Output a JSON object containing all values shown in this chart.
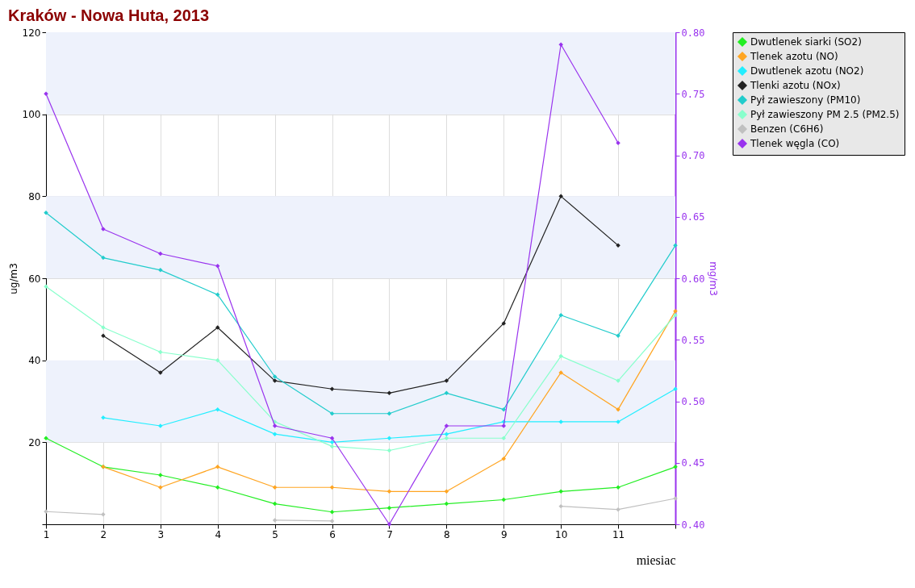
{
  "chart_data": {
    "type": "line",
    "title": "Kraków - Nowa Huta, 2013",
    "xlabel": "miesiac",
    "ylabel": "ug/m3",
    "y2label": "mg/m3",
    "x": [
      1,
      2,
      3,
      4,
      5,
      6,
      7,
      8,
      9,
      10,
      11,
      12
    ],
    "xlim": [
      1,
      12
    ],
    "xticks": [
      1,
      2,
      3,
      4,
      5,
      6,
      7,
      8,
      9,
      10,
      11,
      {
        "value": 12,
        "label": null
      }
    ],
    "ylim": [
      0,
      120
    ],
    "yticks": [
      {
        "value": 0,
        "label": null
      },
      20,
      40,
      60,
      80,
      100,
      120
    ],
    "y2lim": [
      0.4,
      0.8
    ],
    "y2ticks": [
      {
        "value": 0.4,
        "label": "0.40"
      },
      {
        "value": 0.45,
        "label": "0.45"
      },
      {
        "value": 0.5,
        "label": "0.50"
      },
      {
        "value": 0.55,
        "label": "0.55"
      },
      {
        "value": 0.6,
        "label": "0.60"
      },
      {
        "value": 0.65,
        "label": "0.65"
      },
      {
        "value": 0.7,
        "label": "0.70"
      },
      {
        "value": 0.75,
        "label": "0.75"
      },
      {
        "value": 0.8,
        "label": "0.80"
      }
    ],
    "grid": true,
    "legend": "top right",
    "marker": "diamond",
    "line_style": "solid",
    "bands": [
      {
        "axis": "y",
        "from": 20,
        "to": 40,
        "color": "#eef2fc"
      },
      {
        "axis": "y",
        "from": 60,
        "to": 80,
        "color": "#eef2fc"
      },
      {
        "axis": "y",
        "from": 100,
        "to": 120,
        "color": "#eef2fc"
      }
    ],
    "series": [
      {
        "name": "Dwutlenek siarki (SO2)",
        "color": "#22ee22",
        "values": [
          21,
          14,
          12,
          9,
          5,
          3,
          4,
          5,
          6,
          8,
          9,
          14
        ]
      },
      {
        "name": "Tlenek azotu (NO)",
        "color": "#ffa522",
        "values": [
          null,
          14,
          9,
          14,
          9,
          9,
          8,
          8,
          16,
          37,
          28,
          52
        ]
      },
      {
        "name": "Dwutlenek azotu (NO2)",
        "color": "#22eeff",
        "values": [
          null,
          26,
          24,
          28,
          22,
          20,
          21,
          22,
          25,
          25,
          25,
          33
        ]
      },
      {
        "name": "Tlenki azotu (NOx)",
        "color": "#222222",
        "values": [
          null,
          46,
          37,
          48,
          35,
          33,
          32,
          35,
          49,
          80,
          68,
          null
        ]
      },
      {
        "name": "Pył zawieszony (PM10)",
        "color": "#22cccc",
        "values": [
          76,
          65,
          62,
          56,
          36,
          27,
          27,
          32,
          28,
          51,
          46,
          68
        ]
      },
      {
        "name": "Pył zawieszony PM 2.5 (PM2.5)",
        "color": "#88ffcc",
        "values": [
          58,
          48,
          42,
          40,
          25,
          19,
          18,
          21,
          21,
          41,
          35,
          51
        ]
      },
      {
        "name": "Benzen (C6H6)",
        "color": "#c0c0c0",
        "values": [
          3.1,
          2.4,
          null,
          null,
          1,
          0.8,
          null,
          null,
          null,
          4.4,
          3.6,
          6.3
        ]
      },
      {
        "name": "Tlenek węgla (CO)",
        "color": "#9933ee",
        "axis": "y2",
        "values": [
          0.75,
          0.64,
          0.62,
          0.61,
          0.48,
          0.47,
          0.4,
          0.48,
          0.48,
          0.79,
          0.71,
          null
        ]
      }
    ]
  }
}
